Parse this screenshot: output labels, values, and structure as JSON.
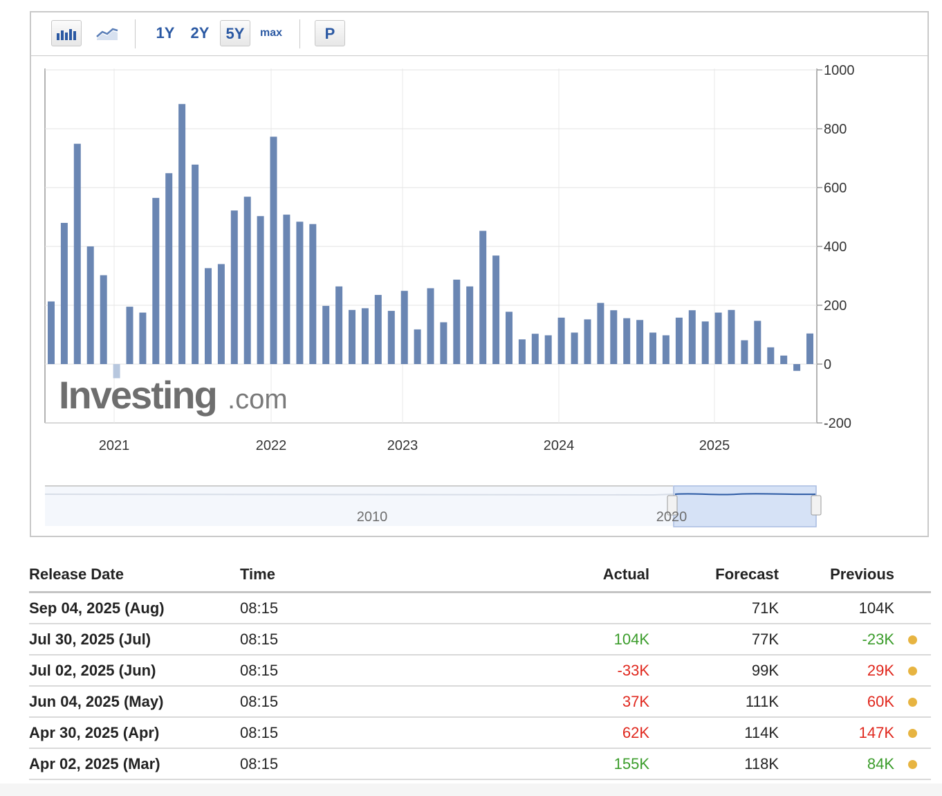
{
  "toolbar": {
    "bar_chart_icon": "bar-chart-icon",
    "line_chart_icon": "line-chart-icon",
    "periods": [
      "1Y",
      "2Y",
      "5Y",
      "max"
    ],
    "active_period": "5Y",
    "p_label": "P"
  },
  "watermark": {
    "brand": "Investing",
    "suffix": ".com"
  },
  "colors": {
    "bar": "#6a86b3",
    "accent": "#2b59a3",
    "positive": "#3a9c2a",
    "negative": "#e0271d",
    "dot": "#e7b441"
  },
  "chart_data": {
    "type": "bar",
    "y_ticks": [
      "1000",
      "800",
      "600",
      "400",
      "200",
      "0",
      "-200"
    ],
    "x_ticks": [
      "2021",
      "2022",
      "2023",
      "2024",
      "2025"
    ],
    "ylim": [
      -200,
      1000
    ],
    "grid": true,
    "axis_position": "right",
    "values": [
      213,
      480,
      749,
      400,
      302,
      -48,
      195,
      175,
      565,
      649,
      884,
      678,
      326,
      340,
      522,
      569,
      503,
      773,
      508,
      484,
      476,
      198,
      264,
      184,
      190,
      235,
      181,
      249,
      118,
      258,
      142,
      287,
      264,
      453,
      369,
      178,
      84,
      103,
      98,
      158,
      107,
      152,
      208,
      183,
      156,
      150,
      107,
      98,
      158,
      183,
      145,
      175,
      184,
      81,
      147,
      57,
      29,
      -23,
      104
    ],
    "navigator": {
      "labels": [
        "2010",
        "2020"
      ]
    }
  },
  "table": {
    "headers": {
      "date": "Release Date",
      "time": "Time",
      "actual": "Actual",
      "forecast": "Forecast",
      "previous": "Previous"
    },
    "rows": [
      {
        "date": "Sep 04, 2025 (Aug)",
        "time": "08:15",
        "actual": "",
        "actual_tone": "",
        "forecast": "71K",
        "previous": "104K",
        "previous_tone": "",
        "dot": false
      },
      {
        "date": "Jul 30, 2025 (Jul)",
        "time": "08:15",
        "actual": "104K",
        "actual_tone": "pos",
        "forecast": "77K",
        "previous": "-23K",
        "previous_tone": "pos",
        "dot": true
      },
      {
        "date": "Jul 02, 2025 (Jun)",
        "time": "08:15",
        "actual": "-33K",
        "actual_tone": "neg",
        "forecast": "99K",
        "previous": "29K",
        "previous_tone": "neg",
        "dot": true
      },
      {
        "date": "Jun 04, 2025 (May)",
        "time": "08:15",
        "actual": "37K",
        "actual_tone": "neg",
        "forecast": "111K",
        "previous": "60K",
        "previous_tone": "neg",
        "dot": true
      },
      {
        "date": "Apr 30, 2025 (Apr)",
        "time": "08:15",
        "actual": "62K",
        "actual_tone": "neg",
        "forecast": "114K",
        "previous": "147K",
        "previous_tone": "neg",
        "dot": true
      },
      {
        "date": "Apr 02, 2025 (Mar)",
        "time": "08:15",
        "actual": "155K",
        "actual_tone": "pos",
        "forecast": "118K",
        "previous": "84K",
        "previous_tone": "pos",
        "dot": true
      }
    ]
  }
}
